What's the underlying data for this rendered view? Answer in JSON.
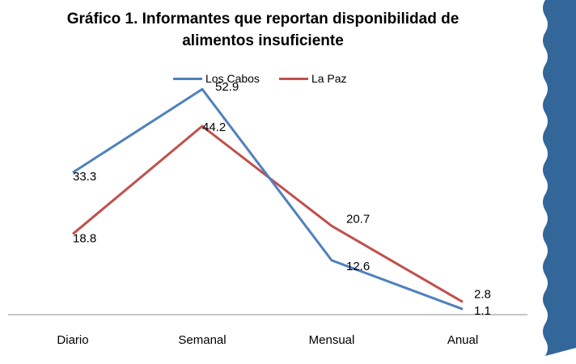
{
  "chart_data": {
    "type": "line",
    "title_lines": [
      "Gráfico 1. Informantes que reportan disponibilidad  de",
      "alimentos insuficiente"
    ],
    "categories": [
      "Diario",
      "Semanal",
      "Mensual",
      "Anual"
    ],
    "series": [
      {
        "name": "Los Cabos",
        "color": "#4f81bd",
        "values": [
          33.3,
          52.9,
          12.6,
          1.1
        ],
        "labels": [
          "33.3",
          "52.9",
          "12.6",
          "1.1"
        ]
      },
      {
        "name": "La Paz",
        "color": "#c0504d",
        "values": [
          18.8,
          44.2,
          20.7,
          2.8
        ],
        "labels": [
          "18.8",
          "44.2",
          "20.7",
          "2.8"
        ]
      }
    ],
    "ylim": [
      0,
      60
    ],
    "grid": false,
    "legend_position": "top",
    "xlabel": "",
    "ylabel": ""
  },
  "decoration": {
    "side_banner_color": "#336699"
  }
}
